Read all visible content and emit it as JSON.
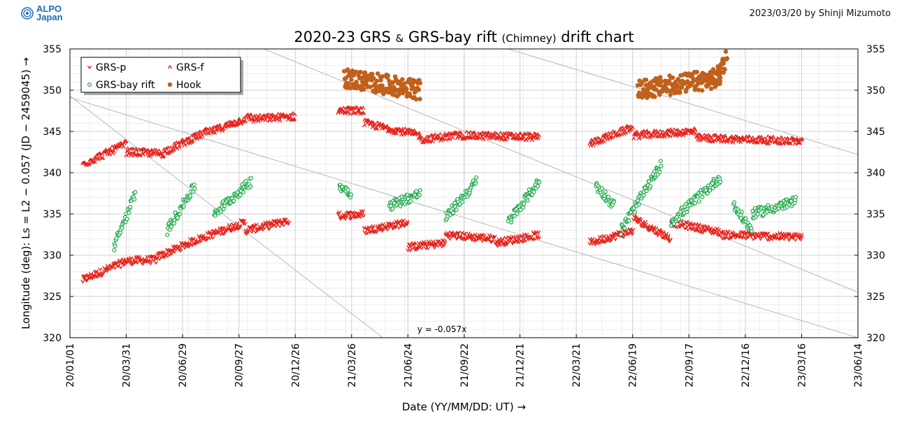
{
  "header": {
    "logo_line1": "ALPO",
    "logo_line2": "Japan",
    "credit": "2023/03/20 by Shinji Mizumoto"
  },
  "chart_data": {
    "type": "scatter",
    "title": "2020-23 GRS & GRS-bay rift (Chimney) drift chart",
    "title_parts": [
      "2020-23 GRS ",
      "&",
      " GRS-bay rift ",
      "(Chimney)",
      " drift chart"
    ],
    "xlabel": "Date (YY/MM/DD: UT) →",
    "ylabel": "Longitude (deg): Ls = L2 − 0.057 (JD − 2459045) →",
    "x_ticks": [
      "20/01/01",
      "20/03/31",
      "20/06/29",
      "20/09/27",
      "20/12/26",
      "21/03/26",
      "21/06/24",
      "21/09/22",
      "21/12/21",
      "22/03/21",
      "22/06/19",
      "22/09/17",
      "22/12/16",
      "23/03/16",
      "23/06/14"
    ],
    "x_tick_days": [
      0,
      90,
      180,
      270,
      360,
      450,
      540,
      630,
      719,
      809,
      899,
      989,
      1079,
      1169,
      1259
    ],
    "xlim": [
      0,
      1259
    ],
    "ylim": [
      320,
      355
    ],
    "y_ticks": [
      320,
      325,
      330,
      335,
      340,
      345,
      350,
      355
    ],
    "grid": true,
    "legend_position": "top-left",
    "annotation": "y = -0.057x",
    "guide_lines": [
      {
        "x": [
          0,
          500
        ],
        "y": [
          349.3,
          320
        ]
      },
      {
        "x": [
          310,
          1259
        ],
        "y": [
          355,
          325.5
        ]
      },
      {
        "x": [
          700,
          1259
        ],
        "y": [
          355,
          342.2
        ]
      },
      {
        "x": [
          0,
          1259
        ],
        "y": [
          349.1,
          320
        ]
      }
    ],
    "colors": {
      "grs_p": "#e8221b",
      "grs_f": "#e8221b",
      "bay_rift": "#1fa84a",
      "hook": "#c0601a"
    },
    "series": [
      {
        "name": "GRS-p",
        "marker": "v",
        "color": "#e8221b",
        "segments": [
          {
            "days": [
              20,
              90
            ],
            "lon": [
              327.0,
              329.3
            ]
          },
          {
            "days": [
              90,
              140
            ],
            "lon": [
              329.3,
              329.5
            ]
          },
          {
            "days": [
              140,
              200
            ],
            "lon": [
              329.8,
              331.8
            ]
          },
          {
            "days": [
              200,
              280
            ],
            "lon": [
              331.8,
              334.0
            ]
          },
          {
            "days": [
              280,
              350
            ],
            "lon": [
              333.0,
              334.2
            ]
          },
          {
            "days": [
              428,
              470
            ],
            "lon": [
              334.8,
              335.0
            ]
          },
          {
            "days": [
              470,
              540
            ],
            "lon": [
              333.0,
              334.0
            ]
          },
          {
            "days": [
              540,
              600
            ],
            "lon": [
              331.0,
              331.5
            ]
          },
          {
            "days": [
              600,
              680
            ],
            "lon": [
              332.5,
              332.0
            ]
          },
          {
            "days": [
              680,
              750
            ],
            "lon": [
              331.5,
              332.5
            ]
          },
          {
            "days": [
              830,
              900
            ],
            "lon": [
              331.5,
              333.0
            ]
          },
          {
            "days": [
              900,
              960
            ],
            "lon": [
              334.5,
              332.0
            ]
          },
          {
            "days": [
              960,
              1040
            ],
            "lon": [
              334.0,
              332.8
            ]
          },
          {
            "days": [
              1040,
              1170
            ],
            "lon": [
              332.5,
              332.2
            ]
          }
        ]
      },
      {
        "name": "GRS-f",
        "marker": "^",
        "color": "#e8221b",
        "segments": [
          {
            "days": [
              20,
              90
            ],
            "lon": [
              341.0,
              343.5
            ]
          },
          {
            "days": [
              90,
              150
            ],
            "lon": [
              342.5,
              342.3
            ]
          },
          {
            "days": [
              150,
              220
            ],
            "lon": [
              342.5,
              345.0
            ]
          },
          {
            "days": [
              220,
              290
            ],
            "lon": [
              344.8,
              346.8
            ]
          },
          {
            "days": [
              290,
              360
            ],
            "lon": [
              346.5,
              346.8
            ]
          },
          {
            "days": [
              428,
              470
            ],
            "lon": [
              347.5,
              347.5
            ]
          },
          {
            "days": [
              470,
              560
            ],
            "lon": [
              346.0,
              344.5
            ]
          },
          {
            "days": [
              560,
              620
            ],
            "lon": [
              344.0,
              344.5
            ]
          },
          {
            "days": [
              620,
              750
            ],
            "lon": [
              344.5,
              344.3
            ]
          },
          {
            "days": [
              830,
              900
            ],
            "lon": [
              343.5,
              345.5
            ]
          },
          {
            "days": [
              900,
              1000
            ],
            "lon": [
              344.5,
              345.0
            ]
          },
          {
            "days": [
              1000,
              1170
            ],
            "lon": [
              344.2,
              343.8
            ]
          }
        ]
      },
      {
        "name": "GRS-bay rift",
        "marker": "o-open",
        "color": "#1fa84a",
        "segments": [
          {
            "days": [
              70,
              105
            ],
            "lon": [
              331.0,
              337.5
            ]
          },
          {
            "days": [
              155,
              200
            ],
            "lon": [
              333.0,
              338.5
            ]
          },
          {
            "days": [
              230,
              290
            ],
            "lon": [
              335.0,
              339.0
            ]
          },
          {
            "days": [
              430,
              450
            ],
            "lon": [
              338.5,
              337.5
            ]
          },
          {
            "days": [
              510,
              560
            ],
            "lon": [
              336.0,
              337.5
            ]
          },
          {
            "days": [
              600,
              650
            ],
            "lon": [
              334.5,
              339.0
            ]
          },
          {
            "days": [
              700,
              750
            ],
            "lon": [
              334.0,
              339.0
            ]
          },
          {
            "days": [
              840,
              870
            ],
            "lon": [
              338.5,
              336.0
            ]
          },
          {
            "days": [
              880,
              945
            ],
            "lon": [
              333.0,
              341.0
            ]
          },
          {
            "days": [
              960,
              1040
            ],
            "lon": [
              334.0,
              339.5
            ]
          },
          {
            "days": [
              1060,
              1090
            ],
            "lon": [
              336.0,
              333.0
            ]
          },
          {
            "days": [
              1090,
              1160
            ],
            "lon": [
              335.0,
              336.5
            ]
          }
        ]
      },
      {
        "name": "Hook",
        "marker": "o-filled",
        "color": "#c0601a",
        "segments": [
          {
            "days": [
              438,
              560
            ],
            "lon": [
              351.5,
              350.0
            ]
          },
          {
            "days": [
              907,
              1040
            ],
            "lon": [
              350.0,
              351.5
            ]
          },
          {
            "days": [
              1035,
              1050
            ],
            "lon": [
              352.0,
              354.0
            ]
          }
        ]
      }
    ]
  }
}
